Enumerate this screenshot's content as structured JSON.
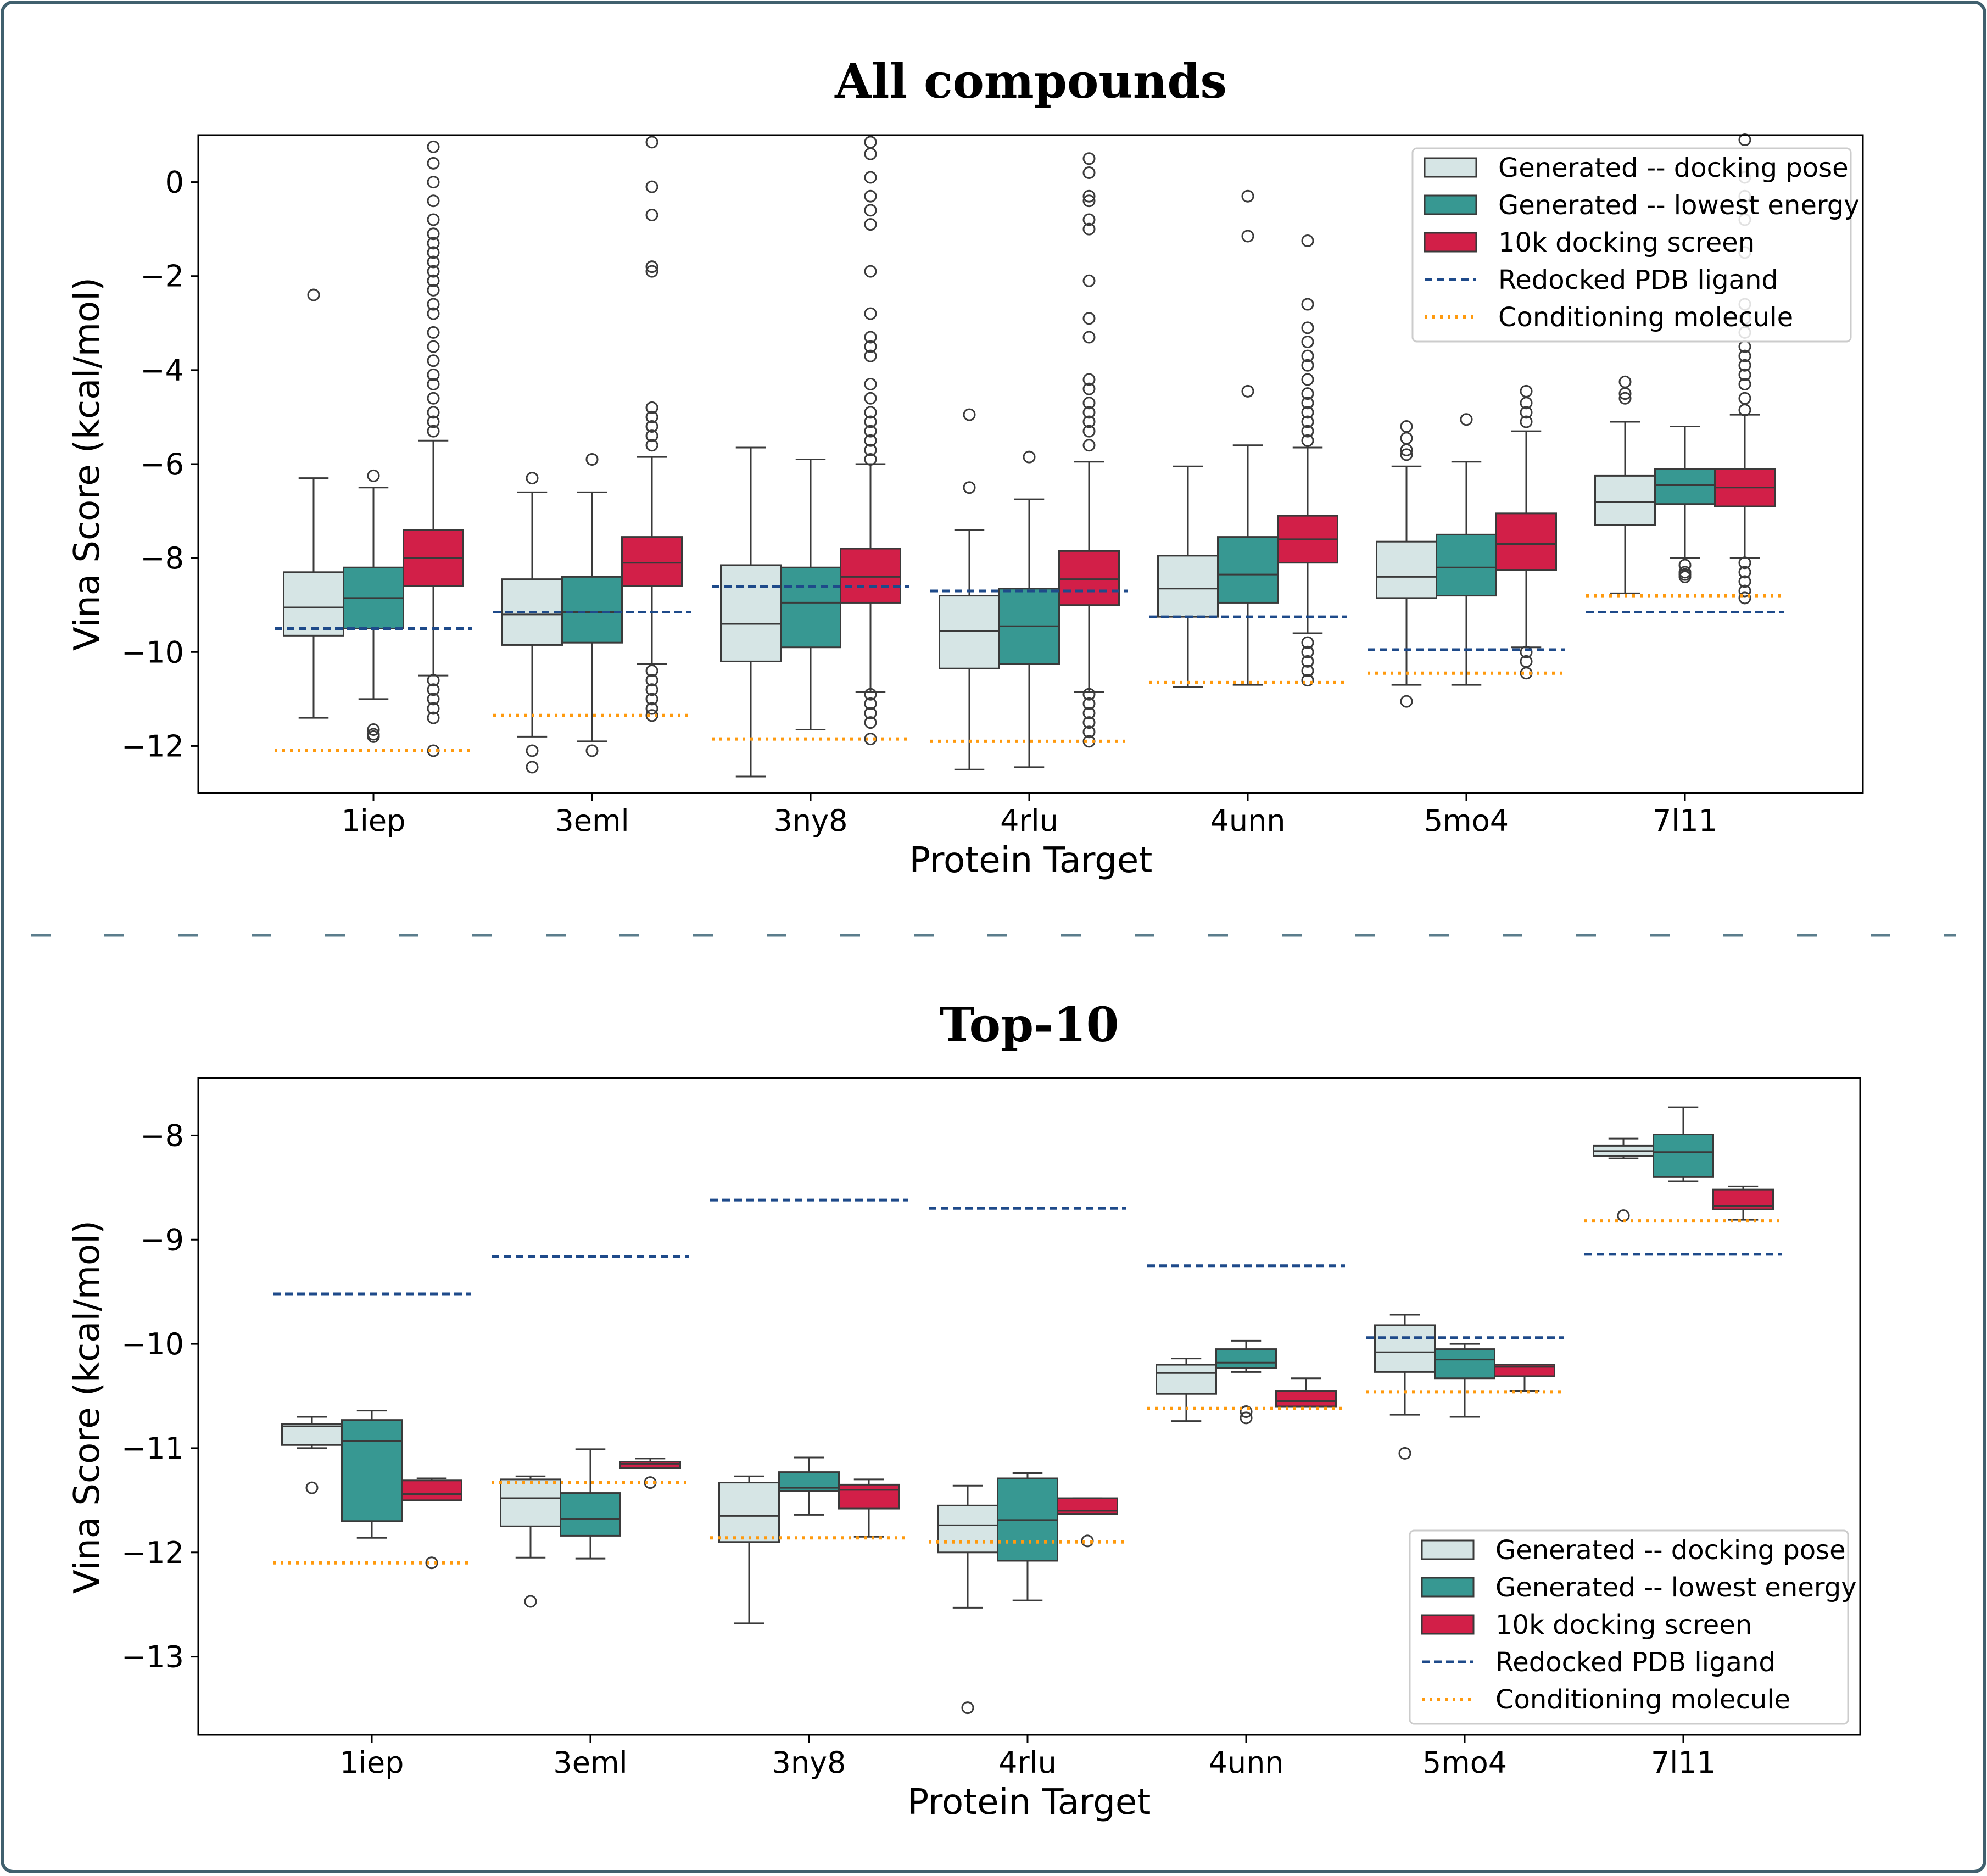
{
  "colors": {
    "gen_docking": "#d6e5e5",
    "gen_lowest": "#379892",
    "screen": "#d21f48",
    "redocked": "#1e4a8a",
    "conditioning": "#ff9a0e",
    "frame": "#40606e",
    "separator": "#5b7d8c"
  },
  "legend": {
    "items": [
      {
        "label": "Generated -- docking pose",
        "kind": "box",
        "color": "#d6e5e5"
      },
      {
        "label": "Generated -- lowest energy",
        "kind": "box",
        "color": "#379892"
      },
      {
        "label": "10k docking screen",
        "kind": "box",
        "color": "#d21f48"
      },
      {
        "label": "Redocked PDB ligand",
        "kind": "dashed",
        "color": "#1e4a8a"
      },
      {
        "label": "Conditioning molecule",
        "kind": "dotted",
        "color": "#ff9a0e"
      }
    ]
  },
  "chart_data": [
    {
      "type": "box",
      "title": "All compounds",
      "xlabel": "Protein Target",
      "ylabel": "Vina Score (kcal/mol)",
      "categories": [
        "1iep",
        "3eml",
        "3ny8",
        "4rlu",
        "4unn",
        "5mo4",
        "7l11"
      ],
      "ylim": [
        -13.0,
        1.0
      ],
      "yticks": [
        0,
        -2,
        -4,
        -6,
        -8,
        -10,
        -12
      ],
      "ytick_labels": [
        "0",
        "−2",
        "−4",
        "−6",
        "−8",
        "−10",
        "−12"
      ],
      "legend_position": "top-right",
      "series": [
        {
          "name": "Generated -- docking pose",
          "boxes": [
            {
              "q1": -9.65,
              "median": -9.05,
              "q3": -8.3,
              "wlo": -11.4,
              "whi": -6.3,
              "fliers": [
                -2.4
              ]
            },
            {
              "q1": -9.85,
              "median": -9.2,
              "q3": -8.45,
              "wlo": -11.8,
              "whi": -6.6,
              "fliers": [
                -6.3,
                -12.1,
                -12.45
              ]
            },
            {
              "q1": -10.2,
              "median": -9.4,
              "q3": -8.15,
              "wlo": -12.65,
              "whi": -5.65,
              "fliers": []
            },
            {
              "q1": -10.35,
              "median": -9.55,
              "q3": -8.8,
              "wlo": -12.5,
              "whi": -7.4,
              "fliers": [
                -4.95,
                -6.5
              ]
            },
            {
              "q1": -9.25,
              "median": -8.65,
              "q3": -7.95,
              "wlo": -10.75,
              "whi": -6.05,
              "fliers": []
            },
            {
              "q1": -8.85,
              "median": -8.4,
              "q3": -7.65,
              "wlo": -10.7,
              "whi": -6.05,
              "fliers": [
                -5.2,
                -5.45,
                -5.7,
                -5.8,
                -11.05
              ]
            },
            {
              "q1": -7.3,
              "median": -6.8,
              "q3": -6.25,
              "wlo": -8.75,
              "whi": -5.1,
              "fliers": [
                -4.25,
                -4.5,
                -4.6
              ]
            }
          ]
        },
        {
          "name": "Generated -- lowest energy",
          "boxes": [
            {
              "q1": -9.5,
              "median": -8.85,
              "q3": -8.2,
              "wlo": -11.0,
              "whi": -6.5,
              "fliers": [
                -6.25,
                -11.65,
                -11.75,
                -11.8
              ]
            },
            {
              "q1": -9.8,
              "median": -9.15,
              "q3": -8.4,
              "wlo": -11.9,
              "whi": -6.6,
              "fliers": [
                -5.9,
                -12.1
              ]
            },
            {
              "q1": -9.9,
              "median": -8.95,
              "q3": -8.2,
              "wlo": -11.65,
              "whi": -5.9,
              "fliers": []
            },
            {
              "q1": -10.25,
              "median": -9.45,
              "q3": -8.65,
              "wlo": -12.45,
              "whi": -6.75,
              "fliers": [
                -5.85
              ]
            },
            {
              "q1": -8.95,
              "median": -8.35,
              "q3": -7.55,
              "wlo": -10.7,
              "whi": -5.6,
              "fliers": [
                -0.3,
                -1.15,
                -4.45
              ]
            },
            {
              "q1": -8.8,
              "median": -8.2,
              "q3": -7.5,
              "wlo": -10.7,
              "whi": -5.95,
              "fliers": [
                -5.05
              ]
            },
            {
              "q1": -6.85,
              "median": -6.45,
              "q3": -6.1,
              "wlo": -8.0,
              "whi": -5.2,
              "fliers": [
                -8.15,
                -8.3,
                -8.35,
                -8.4
              ]
            }
          ]
        },
        {
          "name": "10k docking screen",
          "boxes": [
            {
              "q1": -8.6,
              "median": -8.0,
              "q3": -7.4,
              "wlo": -10.5,
              "whi": -5.5,
              "fliers": [
                0.75,
                0.4,
                0.0,
                -0.4,
                -0.8,
                -1.1,
                -1.3,
                -1.5,
                -1.7,
                -1.9,
                -2.1,
                -2.3,
                -2.6,
                -2.8,
                -3.2,
                -3.5,
                -3.8,
                -4.1,
                -4.3,
                -4.6,
                -4.9,
                -5.1,
                -5.3,
                -10.6,
                -10.8,
                -11.0,
                -11.2,
                -11.4,
                -12.1
              ]
            },
            {
              "q1": -8.6,
              "median": -8.1,
              "q3": -7.55,
              "wlo": -10.25,
              "whi": -5.85,
              "fliers": [
                0.85,
                -0.1,
                -0.7,
                -1.8,
                -1.9,
                -4.8,
                -5.0,
                -5.2,
                -5.4,
                -5.6,
                -10.4,
                -10.6,
                -10.8,
                -11.0,
                -11.2,
                -11.35
              ]
            },
            {
              "q1": -8.95,
              "median": -8.4,
              "q3": -7.8,
              "wlo": -10.85,
              "whi": -6.0,
              "fliers": [
                0.85,
                0.6,
                0.1,
                -0.3,
                -0.6,
                -0.9,
                -1.9,
                -2.8,
                -3.3,
                -3.5,
                -3.7,
                -4.3,
                -4.6,
                -4.9,
                -5.1,
                -5.3,
                -5.5,
                -5.7,
                -5.9,
                -10.9,
                -11.1,
                -11.3,
                -11.5,
                -11.85
              ]
            },
            {
              "q1": -9.0,
              "median": -8.45,
              "q3": -7.85,
              "wlo": -10.85,
              "whi": -5.95,
              "fliers": [
                0.5,
                0.2,
                -0.3,
                -0.4,
                -0.8,
                -1.0,
                -2.1,
                -2.9,
                -3.3,
                -4.2,
                -4.4,
                -4.7,
                -4.9,
                -5.1,
                -5.3,
                -5.6,
                -10.9,
                -11.1,
                -11.3,
                -11.5,
                -11.7,
                -11.9
              ]
            },
            {
              "q1": -8.1,
              "median": -7.6,
              "q3": -7.1,
              "wlo": -9.6,
              "whi": -5.65,
              "fliers": [
                -1.25,
                -2.6,
                -3.1,
                -3.4,
                -3.7,
                -3.9,
                -4.2,
                -4.5,
                -4.7,
                -4.9,
                -5.1,
                -5.3,
                -5.5,
                -9.8,
                -10.0,
                -10.2,
                -10.4,
                -10.6
              ]
            },
            {
              "q1": -8.25,
              "median": -7.7,
              "q3": -7.05,
              "wlo": -9.9,
              "whi": -5.3,
              "fliers": [
                -4.45,
                -4.7,
                -4.9,
                -5.1,
                -10.0,
                -10.2,
                -10.45
              ]
            },
            {
              "q1": -6.9,
              "median": -6.5,
              "q3": -6.1,
              "wlo": -8.0,
              "whi": -4.95,
              "fliers": [
                0.9,
                0.1,
                -0.3,
                -0.8,
                -1.5,
                -2.6,
                -2.9,
                -3.2,
                -3.5,
                -3.7,
                -3.9,
                -4.1,
                -4.3,
                -4.6,
                -4.85,
                -8.1,
                -8.3,
                -8.5,
                -8.7,
                -8.85
              ]
            }
          ]
        }
      ],
      "redocked": [
        -9.5,
        -9.15,
        -8.6,
        -8.7,
        -9.25,
        -9.95,
        -9.15
      ],
      "conditioning": [
        -12.1,
        -11.35,
        -11.85,
        -11.9,
        -10.65,
        -10.45,
        -8.8
      ]
    },
    {
      "type": "box",
      "title": "Top-10",
      "xlabel": "Protein Target",
      "ylabel": "Vina Score (kcal/mol)",
      "categories": [
        "1iep",
        "3eml",
        "3ny8",
        "4rlu",
        "4unn",
        "5mo4",
        "7l11"
      ],
      "ylim": [
        -13.75,
        -7.45
      ],
      "yticks": [
        -8,
        -9,
        -10,
        -11,
        -12,
        -13
      ],
      "ytick_labels": [
        "−8",
        "−9",
        "−10",
        "−11",
        "−12",
        "−13"
      ],
      "legend_position": "bottom-right",
      "series": [
        {
          "name": "Generated -- docking pose",
          "boxes": [
            {
              "q1": -10.97,
              "median": -10.79,
              "q3": -10.77,
              "wlo": -11.0,
              "whi": -10.7,
              "fliers": [
                -11.38
              ]
            },
            {
              "q1": -11.75,
              "median": -11.48,
              "q3": -11.3,
              "wlo": -12.05,
              "whi": -11.27,
              "fliers": [
                -12.47
              ]
            },
            {
              "q1": -11.9,
              "median": -11.65,
              "q3": -11.33,
              "wlo": -12.68,
              "whi": -11.27,
              "fliers": []
            },
            {
              "q1": -12.0,
              "median": -11.74,
              "q3": -11.55,
              "wlo": -12.53,
              "whi": -11.36,
              "fliers": [
                -13.49
              ]
            },
            {
              "q1": -10.48,
              "median": -10.28,
              "q3": -10.2,
              "wlo": -10.74,
              "whi": -10.14,
              "fliers": []
            },
            {
              "q1": -10.27,
              "median": -10.08,
              "q3": -9.82,
              "wlo": -10.68,
              "whi": -9.72,
              "fliers": [
                -11.05
              ]
            },
            {
              "q1": -8.2,
              "median": -8.15,
              "q3": -8.1,
              "wlo": -8.22,
              "whi": -8.03,
              "fliers": [
                -8.77
              ]
            }
          ]
        },
        {
          "name": "Generated -- lowest energy",
          "boxes": [
            {
              "q1": -11.7,
              "median": -10.93,
              "q3": -10.73,
              "wlo": -11.86,
              "whi": -10.64,
              "fliers": []
            },
            {
              "q1": -11.84,
              "median": -11.68,
              "q3": -11.43,
              "wlo": -12.06,
              "whi": -11.01,
              "fliers": []
            },
            {
              "q1": -11.41,
              "median": -11.38,
              "q3": -11.23,
              "wlo": -11.64,
              "whi": -11.09,
              "fliers": []
            },
            {
              "q1": -12.08,
              "median": -11.69,
              "q3": -11.29,
              "wlo": -12.46,
              "whi": -11.24,
              "fliers": []
            },
            {
              "q1": -10.23,
              "median": -10.18,
              "q3": -10.05,
              "wlo": -10.27,
              "whi": -9.97,
              "fliers": [
                -10.65,
                -10.71
              ]
            },
            {
              "q1": -10.33,
              "median": -10.15,
              "q3": -10.05,
              "wlo": -10.7,
              "whi": -10.0,
              "fliers": []
            },
            {
              "q1": -8.4,
              "median": -8.16,
              "q3": -7.99,
              "wlo": -8.44,
              "whi": -7.73,
              "fliers": []
            }
          ]
        },
        {
          "name": "10k docking screen",
          "boxes": [
            {
              "q1": -11.5,
              "median": -11.44,
              "q3": -11.31,
              "wlo": -11.5,
              "whi": -11.29,
              "fliers": [
                -12.1
              ]
            },
            {
              "q1": -11.19,
              "median": -11.15,
              "q3": -11.13,
              "wlo": -11.19,
              "whi": -11.1,
              "fliers": [
                -11.33
              ]
            },
            {
              "q1": -11.58,
              "median": -11.4,
              "q3": -11.35,
              "wlo": -11.85,
              "whi": -11.3,
              "fliers": []
            },
            {
              "q1": -11.63,
              "median": -11.6,
              "q3": -11.48,
              "wlo": -11.63,
              "whi": -11.48,
              "fliers": [
                -11.89
              ]
            },
            {
              "q1": -10.6,
              "median": -10.55,
              "q3": -10.45,
              "wlo": -10.6,
              "whi": -10.33,
              "fliers": []
            },
            {
              "q1": -10.31,
              "median": -10.22,
              "q3": -10.2,
              "wlo": -10.45,
              "whi": -10.2,
              "fliers": []
            },
            {
              "q1": -8.71,
              "median": -8.68,
              "q3": -8.52,
              "wlo": -8.81,
              "whi": -8.49,
              "fliers": []
            }
          ]
        }
      ],
      "redocked": [
        -9.52,
        -9.16,
        -8.62,
        -8.7,
        -9.25,
        -9.94,
        -9.14
      ],
      "conditioning": [
        -12.1,
        -11.33,
        -11.86,
        -11.9,
        -10.62,
        -10.46,
        -8.82
      ]
    }
  ]
}
